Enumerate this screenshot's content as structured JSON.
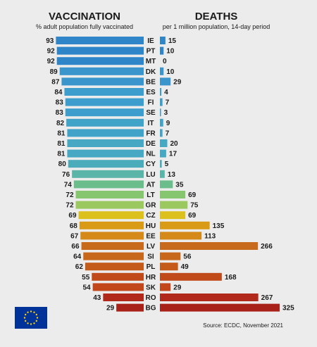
{
  "chart_data": {
    "type": "bar",
    "left": {
      "title": "VACCINATION",
      "subtitle": "% adult population fully vaccinated"
    },
    "right": {
      "title": "DEATHS",
      "subtitle": "per 1 million population, 14-day period"
    },
    "source": "Source: ECDC, November 2021",
    "categories": [
      "IE",
      "PT",
      "MT",
      "DK",
      "BE",
      "ES",
      "FI",
      "SE",
      "IT",
      "FR",
      "DE",
      "NL",
      "CY",
      "LU",
      "AT",
      "LT",
      "GR",
      "CZ",
      "HU",
      "EE",
      "LV",
      "SI",
      "PL",
      "HR",
      "SK",
      "RO",
      "BG"
    ],
    "vaccination": [
      93,
      92,
      92,
      89,
      87,
      84,
      83,
      83,
      82,
      81,
      81,
      81,
      80,
      76,
      74,
      72,
      72,
      69,
      68,
      67,
      66,
      64,
      62,
      55,
      54,
      43,
      29
    ],
    "deaths": [
      15,
      10,
      0,
      10,
      29,
      4,
      7,
      3,
      9,
      7,
      20,
      17,
      5,
      13,
      35,
      69,
      75,
      69,
      135,
      113,
      266,
      56,
      49,
      168,
      29,
      267,
      325
    ],
    "colors": [
      "#2e86c9",
      "#2e86c9",
      "#2e86c9",
      "#3a95cc",
      "#3a95cc",
      "#3d9dcd",
      "#3d9dcd",
      "#3d9dcd",
      "#42a3c8",
      "#42a3c8",
      "#46a8c2",
      "#46a8c2",
      "#4aacba",
      "#5bb4a8",
      "#6cbd8c",
      "#86c66f",
      "#9bc95f",
      "#dcc11c",
      "#d99a16",
      "#d48919",
      "#c86a1c",
      "#c7671c",
      "#c45b1b",
      "#c14a1b",
      "#c2471b",
      "#b0291a",
      "#a8221a"
    ],
    "xlim_vaccination": [
      0,
      100
    ],
    "xlim_deaths": [
      0,
      325
    ]
  },
  "flag": {
    "alt": "EU flag",
    "icon": "eu-flag-icon",
    "color": "#003399",
    "star_color": "#ffcc00"
  }
}
